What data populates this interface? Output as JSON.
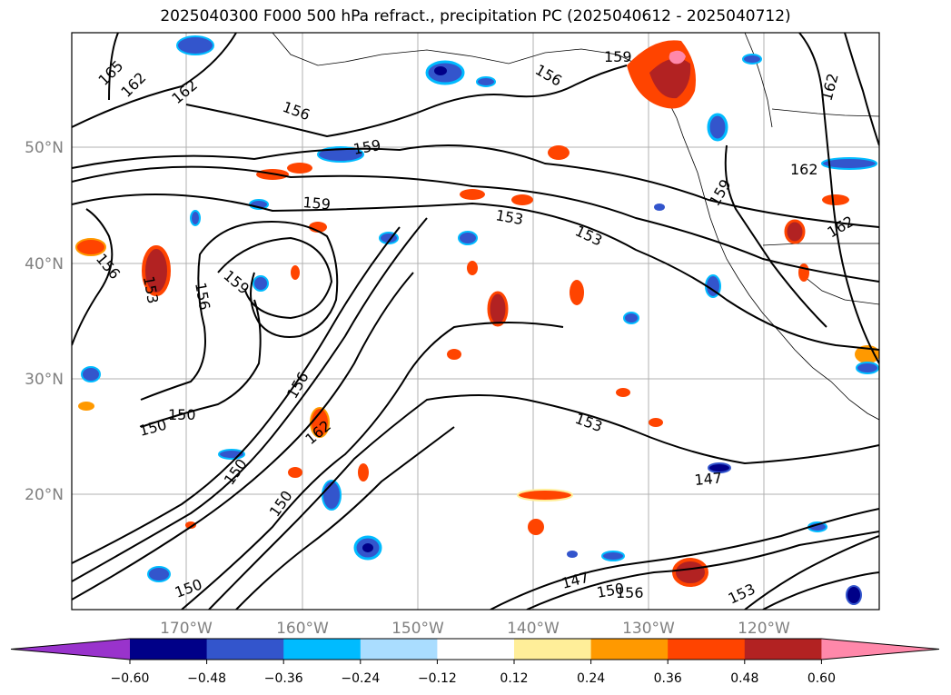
{
  "title": "2025040300 F000 500 hPa refract., precipitation PC (2025040612 - 2025040712)",
  "map": {
    "lat_labels": [
      "50°N",
      "40°N",
      "30°N",
      "20°N"
    ],
    "lon_labels": [
      "170°W",
      "160°W",
      "150°W",
      "140°W",
      "130°W",
      "120°W"
    ],
    "contour_labels": [
      "165",
      "162",
      "162",
      "156",
      "156",
      "159",
      "159",
      "162",
      "153",
      "153",
      "159",
      "156",
      "153",
      "159",
      "159",
      "156",
      "150",
      "150",
      "162",
      "156",
      "150",
      "150",
      "153",
      "147",
      "147",
      "150",
      "156",
      "153",
      "150",
      "162",
      "162"
    ]
  },
  "colorbar": {
    "ticks": [
      "−0.60",
      "−0.48",
      "−0.36",
      "−0.24",
      "−0.12",
      "0.12",
      "0.24",
      "0.36",
      "0.48",
      "0.60"
    ],
    "colors": [
      "#9933cc",
      "#000088",
      "#3355cc",
      "#00bbff",
      "#aaddff",
      "#ffffff",
      "#ffee99",
      "#ff9900",
      "#ff4400",
      "#b22222",
      "#ff88aa"
    ]
  }
}
